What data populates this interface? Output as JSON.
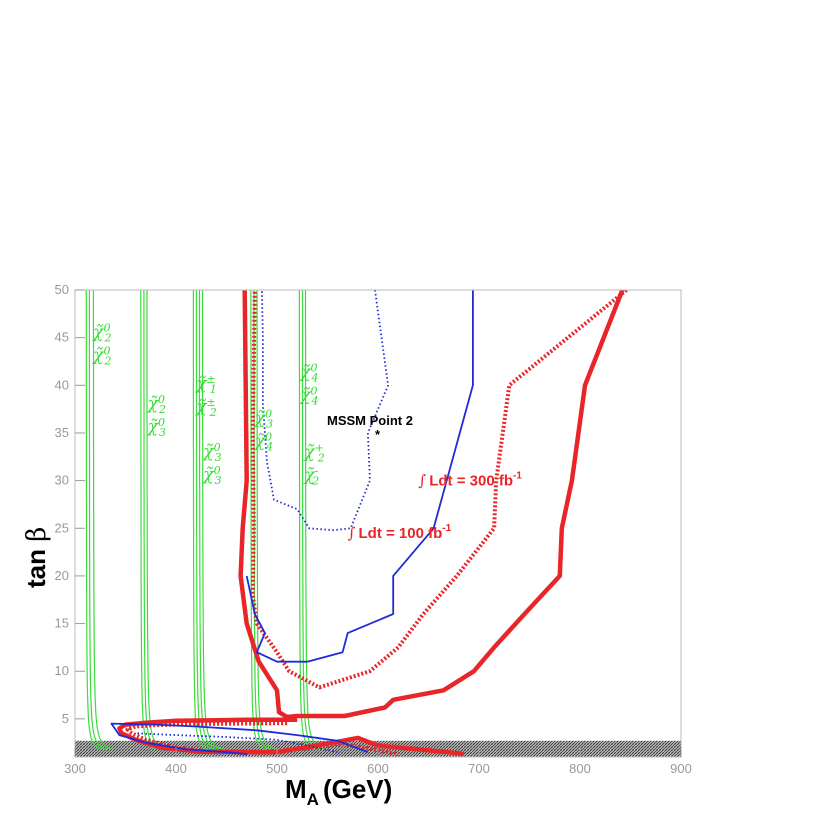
{
  "chart_data": {
    "type": "line",
    "xlabel_main": "M",
    "xlabel_sub": "A",
    "xlabel_unit": "(GeV)",
    "ylabel_main": "tan ",
    "ylabel_symbol": "β",
    "xlim": [
      300,
      900
    ],
    "ylim": [
      1,
      50
    ],
    "x_ticks": [
      300,
      400,
      500,
      600,
      700,
      800,
      900
    ],
    "y_ticks": [
      5,
      10,
      15,
      20,
      25,
      30,
      35,
      40,
      45,
      50
    ],
    "excluded_band": {
      "y_from": 1,
      "y_to": 2.7,
      "color": "#555555"
    },
    "point": {
      "label": "MSSM Point 2",
      "marker": "*",
      "x": 601,
      "y": 35
    },
    "annotations": {
      "lumi_300": {
        "integral": "∫",
        "text": "Ldt = 300 fb",
        "sup": "-1",
        "x": 640,
        "y": 30
      },
      "lumi_100": {
        "integral": "∫",
        "text": "Ldt = 100 fb",
        "sup": "-1",
        "x": 570,
        "y": 24.5
      }
    },
    "green_labels": [
      {
        "line1": "χ̃",
        "sup1": "0",
        "sub1": "2",
        "line2": "χ̃",
        "sup2": "0",
        "sub2": "2",
        "x": 318,
        "y": 45
      },
      {
        "line1": "χ̃",
        "sup1": "0",
        "sub1": "2",
        "line2": "χ̃",
        "sup2": "0",
        "sub2": "3",
        "x": 372,
        "y": 37.5
      },
      {
        "line1": "χ̃",
        "sup1": "±",
        "sub1": "1",
        "line2": "χ̃",
        "sup2": "±",
        "sub2": "2",
        "x": 420,
        "y": 39.6
      },
      {
        "line1": "χ̃",
        "sup1": "0",
        "sub1": "3",
        "line2": "χ̃",
        "sup2": "0",
        "sub2": "3",
        "x": 427,
        "y": 32.5
      },
      {
        "line1": "χ̃",
        "sup1": "0",
        "sub1": "3",
        "line2": "χ̃",
        "sup2": "0",
        "sub2": "4",
        "x": 478,
        "y": 36
      },
      {
        "line1": "χ̃",
        "sup1": "0",
        "sub1": "4",
        "line2": "χ̃",
        "sup2": "0",
        "sub2": "4",
        "x": 523,
        "y": 40.8
      },
      {
        "line1": "χ̃",
        "sup1": "+",
        "sub1": "2",
        "line2": "χ̃",
        "sup2": "-",
        "sub2": "2",
        "x": 527,
        "y": 32.4
      }
    ],
    "series": [
      {
        "style": "solid",
        "color": "#e8262a",
        "width": 4.5,
        "points": [
          [
            842,
            50
          ],
          [
            805,
            40
          ],
          [
            792,
            30
          ],
          [
            782,
            25
          ],
          [
            780,
            20
          ],
          [
            745,
            16
          ],
          [
            715,
            12.5
          ],
          [
            695,
            10
          ],
          [
            665,
            8
          ],
          [
            615,
            7
          ],
          [
            607,
            6.2
          ],
          [
            567,
            5.3
          ],
          [
            520,
            5.3
          ],
          [
            510,
            5.2
          ],
          [
            502,
            5.7
          ],
          [
            500,
            8
          ],
          [
            482,
            11
          ],
          [
            470,
            15
          ],
          [
            464,
            20
          ],
          [
            466,
            25
          ],
          [
            470,
            30
          ],
          [
            469,
            40
          ],
          [
            468,
            50
          ]
        ]
      },
      {
        "style": "solid",
        "color": "#e8262a",
        "width": 4.5,
        "points": [
          [
            520,
            4.9
          ],
          [
            470,
            4.9
          ],
          [
            440,
            4.85
          ],
          [
            400,
            4.8
          ],
          [
            370,
            4.6
          ],
          [
            350,
            4.4
          ],
          [
            344,
            4
          ],
          [
            346,
            3.5
          ],
          [
            360,
            2.8
          ],
          [
            385,
            2
          ],
          [
            425,
            1.55
          ],
          [
            500,
            1.5
          ],
          [
            555,
            2.5
          ],
          [
            580,
            3
          ],
          [
            600,
            2.2
          ],
          [
            640,
            1.8
          ],
          [
            670,
            1.5
          ],
          [
            685,
            1.3
          ]
        ]
      },
      {
        "style": "dotted",
        "color": "#e8262a",
        "width": 4,
        "points": [
          [
            846,
            50
          ],
          [
            730,
            40
          ],
          [
            717,
            30
          ],
          [
            715,
            25
          ],
          [
            678,
            20
          ],
          [
            645,
            16
          ],
          [
            620,
            12.5
          ],
          [
            592,
            10
          ],
          [
            542,
            8.3
          ],
          [
            512,
            10
          ],
          [
            500,
            12
          ],
          [
            480,
            15
          ],
          [
            476,
            18
          ],
          [
            477,
            25
          ],
          [
            476,
            35
          ],
          [
            478,
            50
          ]
        ]
      },
      {
        "style": "dotted",
        "color": "#e8262a",
        "width": 4,
        "points": [
          [
            510,
            4.55
          ],
          [
            460,
            4.5
          ],
          [
            420,
            4.45
          ],
          [
            380,
            4.35
          ],
          [
            360,
            4.2
          ],
          [
            352,
            3.9
          ],
          [
            356,
            3.5
          ],
          [
            370,
            2.8
          ],
          [
            400,
            2
          ],
          [
            430,
            1.6
          ],
          [
            480,
            1.5
          ],
          [
            540,
            2
          ],
          [
            560,
            2.4
          ],
          [
            575,
            2.2
          ],
          [
            590,
            1.9
          ],
          [
            620,
            1.3
          ]
        ]
      },
      {
        "style": "solid",
        "color": "#1f2bd6",
        "width": 1.8,
        "points": [
          [
            694,
            50
          ],
          [
            694,
            40
          ],
          [
            655,
            25
          ],
          [
            615,
            20
          ],
          [
            615,
            16
          ],
          [
            570,
            14
          ],
          [
            565,
            12
          ],
          [
            530,
            11
          ],
          [
            500,
            11
          ],
          [
            480,
            12
          ],
          [
            488,
            14
          ],
          [
            478,
            16
          ],
          [
            470,
            20
          ]
        ]
      },
      {
        "style": "solid",
        "color": "#1f2bd6",
        "width": 1.8,
        "points": [
          [
            590,
            1.5
          ],
          [
            560,
            2.7
          ],
          [
            520,
            3.3
          ],
          [
            480,
            3.8
          ],
          [
            420,
            4.2
          ],
          [
            380,
            4.4
          ],
          [
            336,
            4.5
          ],
          [
            344,
            3.3
          ],
          [
            370,
            2.5
          ],
          [
            410,
            1.8
          ],
          [
            450,
            1.5
          ],
          [
            470,
            1.3
          ]
        ]
      },
      {
        "style": "dotted",
        "color": "#1f2bd6",
        "width": 1.8,
        "points": [
          [
            597,
            50
          ],
          [
            610,
            40
          ],
          [
            590,
            35
          ],
          [
            592,
            30
          ],
          [
            573,
            25
          ],
          [
            556,
            24.8
          ],
          [
            532,
            25
          ],
          [
            520,
            27
          ],
          [
            497,
            28
          ],
          [
            490,
            32
          ],
          [
            486,
            38
          ],
          [
            486,
            45
          ],
          [
            485,
            50
          ]
        ]
      },
      {
        "style": "dotted",
        "color": "#1f2bd6",
        "width": 1.8,
        "points": [
          [
            560,
            1.5
          ],
          [
            530,
            2.2
          ],
          [
            500,
            2.8
          ],
          [
            450,
            3.1
          ],
          [
            400,
            3.3
          ],
          [
            360,
            3.5
          ]
        ]
      }
    ],
    "green_curves": [
      {
        "x_asym": 315,
        "spread": [
          -4,
          -1,
          3
        ],
        "y_bottom": 1.8
      },
      {
        "x_asym": 368,
        "spread": [
          -3,
          0,
          3
        ],
        "y_bottom": 1.8
      },
      {
        "x_asym": 422,
        "spread": [
          -5,
          -2,
          1,
          4
        ],
        "y_bottom": 1.8
      },
      {
        "x_asym": 478,
        "spread": [
          -4,
          -1,
          2
        ],
        "y_bottom": 1.8
      },
      {
        "x_asym": 525,
        "spread": [
          -3,
          0,
          3
        ],
        "y_bottom": 1.8
      }
    ]
  }
}
